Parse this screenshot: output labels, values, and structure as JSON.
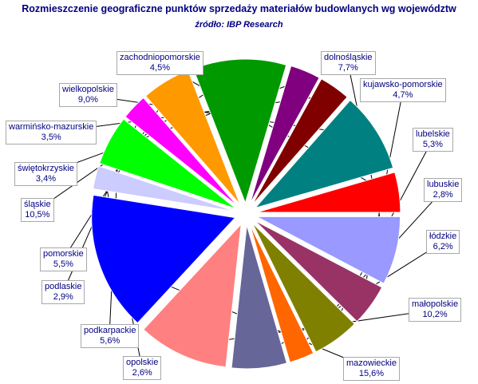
{
  "chart_data": {
    "type": "pie",
    "title": "Rozmieszczenie geograficzne punktów sprzedaży materiałów budowlanych wg województw",
    "subtitle": "źródło: IBP Research",
    "legend": "none",
    "exploded": true,
    "slices": [
      {
        "label": "dolnośląskie",
        "value": 7.7,
        "value_text": "7,7%",
        "color": "#9999FF"
      },
      {
        "label": "kujawsko-pomorskie",
        "value": 4.7,
        "value_text": "4,7%",
        "color": "#993366"
      },
      {
        "label": "lubelskie",
        "value": 5.3,
        "value_text": "5,3%",
        "color": "#808000"
      },
      {
        "label": "lubuskie",
        "value": 2.8,
        "value_text": "2,8%",
        "color": "#FF6600"
      },
      {
        "label": "łódzkie",
        "value": 6.2,
        "value_text": "6,2%",
        "color": "#666699"
      },
      {
        "label": "małopolskie",
        "value": 10.2,
        "value_text": "10,2%",
        "color": "#FF8080"
      },
      {
        "label": "mazowieckie",
        "value": 15.6,
        "value_text": "15,6%",
        "color": "#0000FF"
      },
      {
        "label": "opolskie",
        "value": 2.6,
        "value_text": "2,6%",
        "color": "#CCCCFF"
      },
      {
        "label": "podkarpackie",
        "value": 5.6,
        "value_text": "5,6%",
        "color": "#00FF00"
      },
      {
        "label": "podlaskie",
        "value": 2.9,
        "value_text": "2,9%",
        "color": "#FF00FF"
      },
      {
        "label": "pomorskie",
        "value": 5.5,
        "value_text": "5,5%",
        "color": "#FF9900"
      },
      {
        "label": "śląskie",
        "value": 10.5,
        "value_text": "10,5%",
        "color": "#009900"
      },
      {
        "label": "świętokrzyskie",
        "value": 3.4,
        "value_text": "3,4%",
        "color": "#800080"
      },
      {
        "label": "warmińsko-mazurskie",
        "value": 3.5,
        "value_text": "3,5%",
        "color": "#800000"
      },
      {
        "label": "wielkopolskie",
        "value": 9.0,
        "value_text": "9,0%",
        "color": "#008080"
      },
      {
        "label": "zachodniopomorskie",
        "value": 4.5,
        "value_text": "4,5%",
        "color": "#FF0000"
      }
    ]
  }
}
